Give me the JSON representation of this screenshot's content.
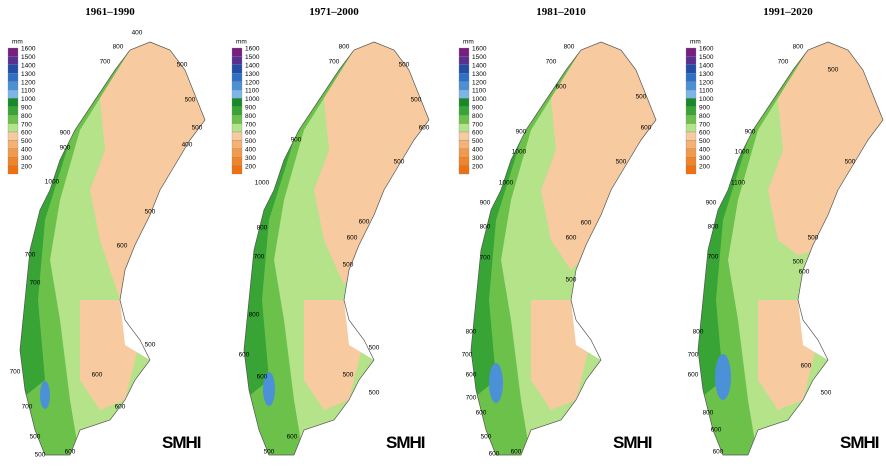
{
  "legend": {
    "unit": "mm",
    "levels": [
      {
        "value": 1600,
        "color": "#7a1e7e"
      },
      {
        "value": 1500,
        "color": "#5a2f90"
      },
      {
        "value": 1400,
        "color": "#1f4fa8"
      },
      {
        "value": 1300,
        "color": "#2f6fc6"
      },
      {
        "value": 1200,
        "color": "#4a91d8"
      },
      {
        "value": 1100,
        "color": "#7cb6e8"
      },
      {
        "value": 1000,
        "color": "#158a26"
      },
      {
        "value": 900,
        "color": "#38a436"
      },
      {
        "value": 800,
        "color": "#6cc14a"
      },
      {
        "value": 700,
        "color": "#b4e38a"
      },
      {
        "value": 600,
        "color": "#f7caa0"
      },
      {
        "value": 500,
        "color": "#f5b272"
      },
      {
        "value": 400,
        "color": "#f39a4a"
      },
      {
        "value": 300,
        "color": "#f18428"
      },
      {
        "value": 200,
        "color": "#ee7010"
      }
    ]
  },
  "panels": [
    {
      "title": "1961–1990",
      "logo": "SMHI",
      "contour_labels": [
        400,
        800,
        700,
        500,
        500,
        500,
        900,
        900,
        400,
        1000,
        500,
        600,
        700,
        700,
        500,
        700,
        600,
        700,
        600,
        500,
        500,
        600
      ]
    },
    {
      "title": "1971–2000",
      "logo": "SMHI",
      "contour_labels": [
        800,
        700,
        500,
        500,
        600,
        900,
        500,
        1000,
        800,
        600,
        600,
        700,
        500,
        800,
        500,
        600,
        600,
        500,
        500,
        500,
        600
      ]
    },
    {
      "title": "1981–2010",
      "logo": "SMHI",
      "contour_labels": [
        800,
        700,
        600,
        500,
        600,
        900,
        1000,
        500,
        1000,
        900,
        600,
        800,
        600,
        700,
        500,
        800,
        700,
        600,
        700,
        600,
        500,
        600,
        600
      ]
    },
    {
      "title": "1991–2020",
      "logo": "SMHI",
      "contour_labels": [
        800,
        700,
        500,
        900,
        1000,
        500,
        1100,
        900,
        500,
        800,
        700,
        500,
        600,
        800,
        700,
        600,
        600,
        500,
        800,
        600,
        600
      ]
    }
  ]
}
